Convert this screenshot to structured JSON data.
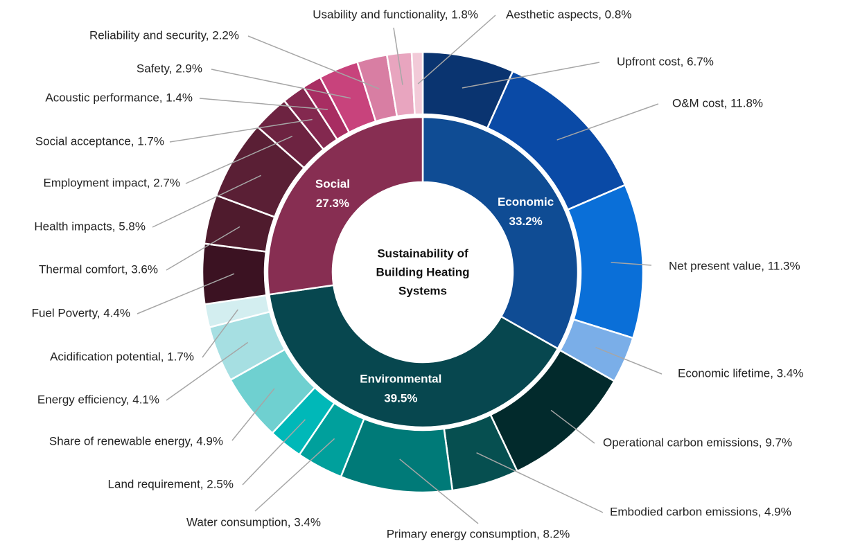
{
  "chart_data": {
    "type": "sunburst",
    "center_label": [
      "Sustainability of",
      "Building Heating",
      "Systems"
    ],
    "groups": [
      {
        "name": "Economic",
        "value": 33.2,
        "value_label": "33.2%",
        "color": "#0f4c94",
        "children": [
          {
            "label": "Upfront cost, 6.7%",
            "value": 6.7,
            "color": "#0a3470"
          },
          {
            "label": "O&M cost, 11.8%",
            "value": 11.8,
            "color": "#0a4aa6"
          },
          {
            "label": "Net present value, 11.3%",
            "value": 11.3,
            "color": "#0a6fd8"
          },
          {
            "label": "Economic lifetime, 3.4%",
            "value": 3.4,
            "color": "#7aaee8"
          }
        ]
      },
      {
        "name": "Environmental",
        "value": 39.5,
        "value_label": "39.5%",
        "color": "#07474f",
        "children": [
          {
            "label": "Operational carbon emissions, 9.7%",
            "value": 9.7,
            "color": "#022a2c"
          },
          {
            "label": "Embodied carbon emissions, 4.9%",
            "value": 4.9,
            "color": "#064f50"
          },
          {
            "label": "Primary energy consumption, 8.2%",
            "value": 8.2,
            "color": "#007a78"
          },
          {
            "label": "Water consumption, 3.4%",
            "value": 3.4,
            "color": "#00a09c"
          },
          {
            "label": "Land requirement, 2.5%",
            "value": 2.5,
            "color": "#00b8b8"
          },
          {
            "label": "Share of renewable energy, 4.9%",
            "value": 4.9,
            "color": "#6fd0d0"
          },
          {
            "label": "Energy efficiency, 4.1%",
            "value": 4.1,
            "color": "#a6dfe2"
          },
          {
            "label": "Acidification potential, 1.7%",
            "value": 1.7,
            "color": "#d3eef0"
          }
        ]
      },
      {
        "name": "Social",
        "value": 27.3,
        "value_label": "27.3%",
        "color": "#872e52",
        "children": [
          {
            "label": "Fuel Poverty, 4.4%",
            "value": 4.4,
            "color": "#3b1222"
          },
          {
            "label": "Thermal comfort, 3.6%",
            "value": 3.6,
            "color": "#4f1b2d"
          },
          {
            "label": "Health impacts, 5.8%",
            "value": 5.8,
            "color": "#5a1f35"
          },
          {
            "label": "Employment impact, 2.7%",
            "value": 2.7,
            "color": "#6d2341"
          },
          {
            "label": "Social acceptance, 1.7%",
            "value": 1.7,
            "color": "#83284f"
          },
          {
            "label": "Acoustic performance, 1.4%",
            "value": 1.4,
            "color": "#a82d62"
          },
          {
            "label": "Safety, 2.9%",
            "value": 2.9,
            "color": "#c8437c"
          },
          {
            "label": "Reliability and security, 2.2%",
            "value": 2.2,
            "color": "#d87ea3"
          },
          {
            "label": "Usability and functionality, 1.8%",
            "value": 1.8,
            "color": "#e8a5bf"
          },
          {
            "label": "Aesthetic aspects, 0.8%",
            "value": 0.8,
            "color": "#f2cad8"
          }
        ]
      }
    ]
  }
}
